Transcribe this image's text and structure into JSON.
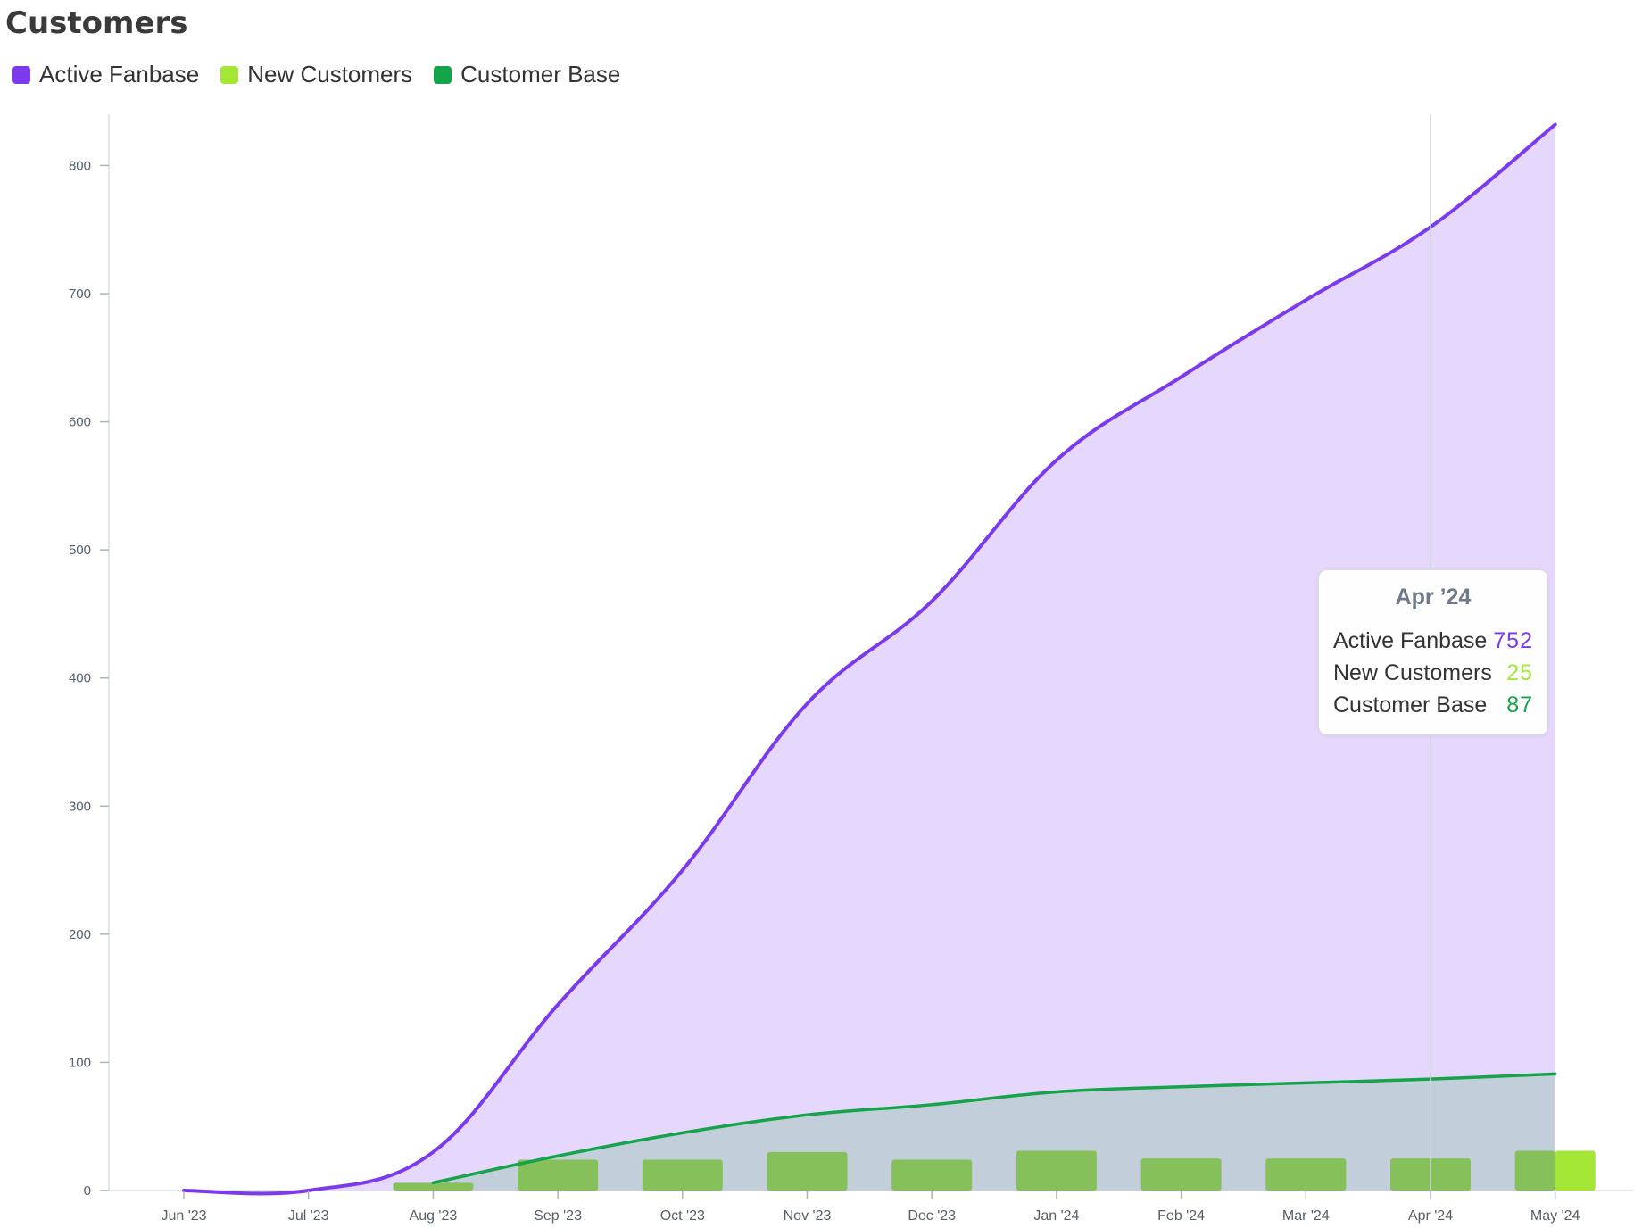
{
  "header": {
    "title": "Customers"
  },
  "legend": [
    {
      "label": "Active Fanbase",
      "color": "#7c3aed"
    },
    {
      "label": "New Customers",
      "color": "#a3e635"
    },
    {
      "label": "Customer Base",
      "color": "#16a34a"
    }
  ],
  "tooltip": {
    "title": "Apr ’24",
    "rows": [
      {
        "label": "Active Fanbase",
        "value": "752",
        "color": "#7c3aed"
      },
      {
        "label": "New Customers",
        "value": "25",
        "color": "#a3e635"
      },
      {
        "label": "Customer Base",
        "value": "87",
        "color": "#16a34a"
      }
    ]
  },
  "chart_data": {
    "type": "area",
    "title": "Customers",
    "categories": [
      "Jun '23",
      "Jul '23",
      "Aug '23",
      "Sep '23",
      "Oct '23",
      "Nov '23",
      "Dec '23",
      "Jan '24",
      "Feb '24",
      "Mar '24",
      "Apr '24",
      "May '24"
    ],
    "yticks": [
      0,
      100,
      200,
      300,
      400,
      500,
      600,
      700,
      800
    ],
    "ylim": [
      0,
      840
    ],
    "grid": false,
    "legend_position": "top-left",
    "highlighted_category": "Apr '24",
    "series": [
      {
        "name": "Active Fanbase",
        "type": "area",
        "color": "#7c3aed",
        "fill": "#e5d8fc",
        "values": [
          0,
          0,
          30,
          145,
          250,
          380,
          460,
          570,
          635,
          695,
          752,
          832
        ]
      },
      {
        "name": "Customer Base",
        "type": "area",
        "color": "#16a34a",
        "fill": "#c2cfda",
        "values": [
          null,
          null,
          6,
          27,
          45,
          59,
          67,
          77,
          81,
          84,
          87,
          91
        ]
      },
      {
        "name": "New Customers",
        "type": "bar",
        "color": "#86c05a",
        "highlight_color": "#a3e635",
        "values": [
          0,
          0,
          6,
          24,
          24,
          30,
          24,
          31,
          25,
          25,
          25,
          31
        ]
      }
    ]
  }
}
